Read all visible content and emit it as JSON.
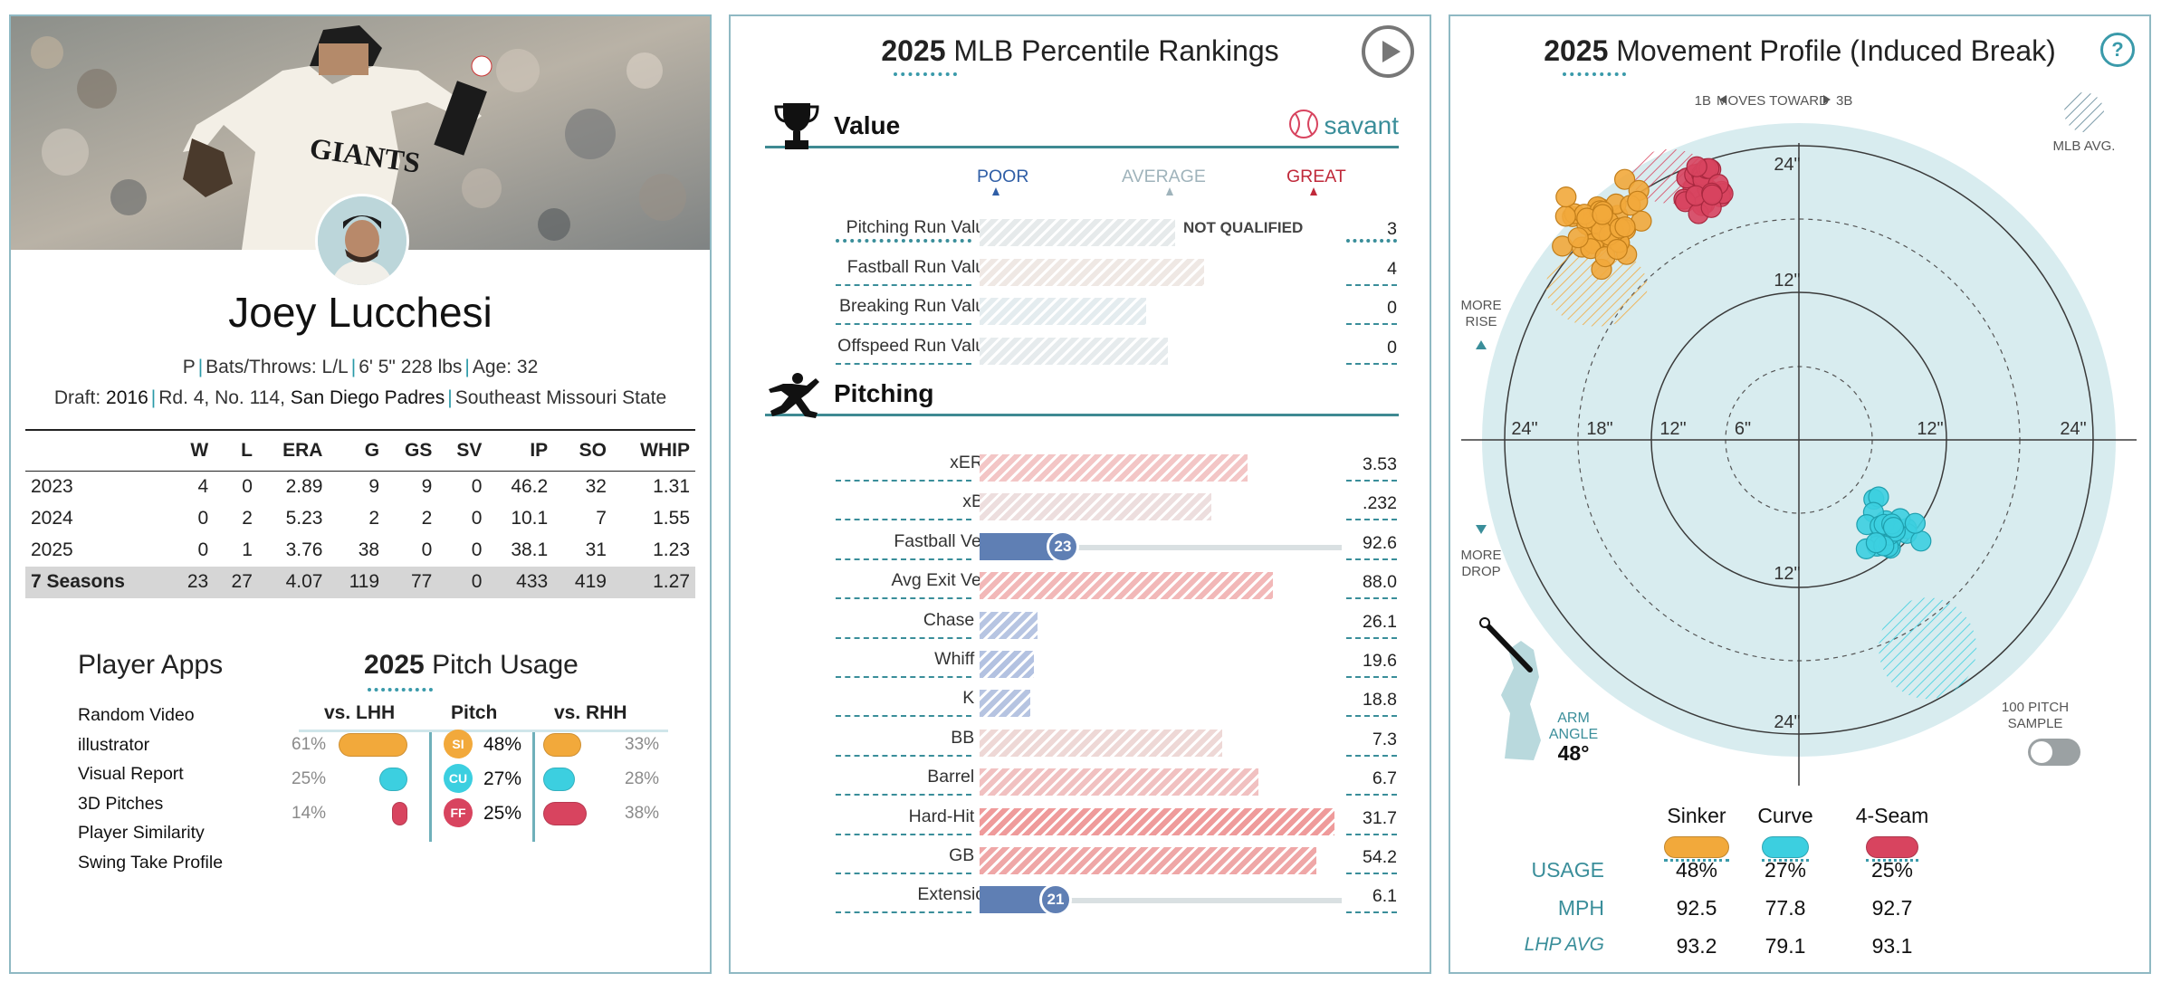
{
  "player": {
    "name": "Joey Lucchesi",
    "bio": {
      "position": "P",
      "bats_throws": "Bats/Throws: L/L",
      "height_weight": "6' 5\" 228 lbs",
      "age": "Age: 32",
      "draft_label": "Draft:",
      "draft_year": "2016",
      "draft_pick": "Rd. 4, No. 114,",
      "draft_team": "San Diego Padres",
      "school": "Southeast Missouri State"
    },
    "jersey_text": "GIANTS"
  },
  "stats": {
    "headers": [
      "",
      "W",
      "L",
      "ERA",
      "G",
      "GS",
      "SV",
      "IP",
      "SO",
      "WHIP"
    ],
    "rows": [
      [
        "2023",
        "4",
        "0",
        "2.89",
        "9",
        "9",
        "0",
        "46.2",
        "32",
        "1.31"
      ],
      [
        "2024",
        "0",
        "2",
        "5.23",
        "2",
        "2",
        "0",
        "10.1",
        "7",
        "1.55"
      ],
      [
        "2025",
        "0",
        "1",
        "3.76",
        "38",
        "0",
        "0",
        "38.1",
        "31",
        "1.23"
      ]
    ],
    "career": [
      "7 Seasons",
      "23",
      "27",
      "4.07",
      "119",
      "77",
      "0",
      "433",
      "419",
      "1.27"
    ]
  },
  "player_apps": {
    "title": "Player Apps",
    "items": [
      "Random Video",
      "illustrator",
      "Visual Report",
      "3D Pitches",
      "Player Similarity",
      "Swing Take Profile"
    ]
  },
  "pitch_usage": {
    "year": "2025",
    "title": "Pitch Usage",
    "col_lhh": "vs. LHH",
    "col_pitch": "Pitch",
    "col_rhh": "vs. RHH",
    "rows": [
      {
        "code": "SI",
        "color": "#f2a93b",
        "lhh": "61%",
        "lhh_val": 61,
        "all": "48%",
        "rhh": "33%",
        "rhh_val": 33
      },
      {
        "code": "CU",
        "color": "#3ccfe0",
        "lhh": "25%",
        "lhh_val": 25,
        "all": "27%",
        "rhh": "28%",
        "rhh_val": 28
      },
      {
        "code": "FF",
        "color": "#d8445f",
        "lhh": "14%",
        "lhh_val": 14,
        "all": "25%",
        "rhh": "38%",
        "rhh_val": 38
      }
    ]
  },
  "percentiles": {
    "year": "2025",
    "title": "MLB Percentile Rankings",
    "scale": {
      "poor": "POOR",
      "average": "AVERAGE",
      "great": "GREAT"
    },
    "brand": "savant",
    "not_qualified": "NOT QUALIFIED",
    "value_section": {
      "label": "Value",
      "rows": [
        {
          "name": "Pitching Run Value",
          "pct": 54,
          "value": "3",
          "color": "#e6eaeb",
          "nq": true
        },
        {
          "name": "Fastball Run Value",
          "pct": 62,
          "value": "4",
          "color": "#efe8e4"
        },
        {
          "name": "Breaking Run Value",
          "pct": 46,
          "value": "0",
          "color": "#e4ecef"
        },
        {
          "name": "Offspeed Run Value",
          "pct": 52,
          "value": "0",
          "color": "#e6ebed"
        }
      ]
    },
    "pitching_section": {
      "label": "Pitching",
      "rows": [
        {
          "name": "xERA",
          "pct": 74,
          "value": "3.53",
          "color": "#f3c6c6"
        },
        {
          "name": "xBA",
          "pct": 64,
          "value": ".232",
          "color": "#eddede"
        },
        {
          "name": "Fastball Velo",
          "pct": 23,
          "value": "92.6",
          "color": "#5f7fb4",
          "solid": true
        },
        {
          "name": "Avg Exit Velo",
          "pct": 81,
          "value": "88.0",
          "color": "#f2b8b8"
        },
        {
          "name": "Chase %",
          "pct": 16,
          "value": "26.1",
          "color": "#b7c5e2"
        },
        {
          "name": "Whiff %",
          "pct": 15,
          "value": "19.6",
          "color": "#b3c2e1"
        },
        {
          "name": "K %",
          "pct": 14,
          "value": "18.8",
          "color": "#b6c4e1"
        },
        {
          "name": "BB %",
          "pct": 67,
          "value": "7.3",
          "color": "#eed8d6"
        },
        {
          "name": "Barrel %",
          "pct": 77,
          "value": "6.7",
          "color": "#f1c1c1"
        },
        {
          "name": "Hard-Hit %",
          "pct": 98,
          "value": "31.7",
          "color": "#ef9b9b"
        },
        {
          "name": "GB %",
          "pct": 93,
          "value": "54.2",
          "color": "#efa7a7"
        },
        {
          "name": "Extension",
          "pct": 21,
          "value": "6.1",
          "color": "#5f7fb4",
          "solid": true
        }
      ]
    }
  },
  "movement": {
    "year": "2025",
    "title": "Movement Profile (Induced Break)",
    "direction_left": "1B",
    "direction_mid": "MOVES TOWARD",
    "direction_right": "3B",
    "mlb_avg": "MLB AVG.",
    "more_rise_1": "MORE",
    "more_rise_2": "RISE",
    "more_drop_1": "MORE",
    "more_drop_2": "DROP",
    "ring_labels": {
      "top24": "24\"",
      "top12": "12\"",
      "bot12": "12\"",
      "bot24": "24\"",
      "left24": "24\"",
      "left18": "18\"",
      "left12": "12\"",
      "left6": "6\"",
      "right12": "12\"",
      "right24": "24\""
    },
    "arm_angle_1": "ARM",
    "arm_angle_2": "ANGLE",
    "arm_angle_value": "48°",
    "sample_1": "100 PITCH",
    "sample_2": "SAMPLE",
    "pitches": [
      {
        "name": "Sinker",
        "color": "#f2a93b",
        "usage": "48%",
        "mph": "92.5",
        "lhp_avg": "93.2"
      },
      {
        "name": "Curve",
        "color": "#3ccfe0",
        "usage": "27%",
        "mph": "77.8",
        "lhp_avg": "79.1"
      },
      {
        "name": "4-Seam",
        "color": "#d8445f",
        "usage": "25%",
        "mph": "92.7",
        "lhp_avg": "93.1"
      }
    ],
    "row_labels": {
      "usage": "USAGE",
      "mph": "MPH",
      "lhp_avg": "LHP AVG"
    },
    "point_clusters": {
      "sinker": {
        "h_center": -15.5,
        "v_center": 17.5,
        "h_spread": 3.5,
        "v_spread": 3.2
      },
      "fourseam": {
        "h_center": -7.5,
        "v_center": 20.5,
        "h_spread": 2.0,
        "v_spread": 2.0
      },
      "curve": {
        "h_center": 7.5,
        "v_center": -7.0,
        "h_spread": 2.2,
        "v_spread": 2.3
      }
    },
    "avg_ellipses": {
      "sinker": {
        "h": -16.5,
        "v": 12.5
      },
      "fourseam": {
        "h": -10.5,
        "v": 21.5
      },
      "curve": {
        "h": 10.5,
        "v": -17.0
      }
    }
  }
}
